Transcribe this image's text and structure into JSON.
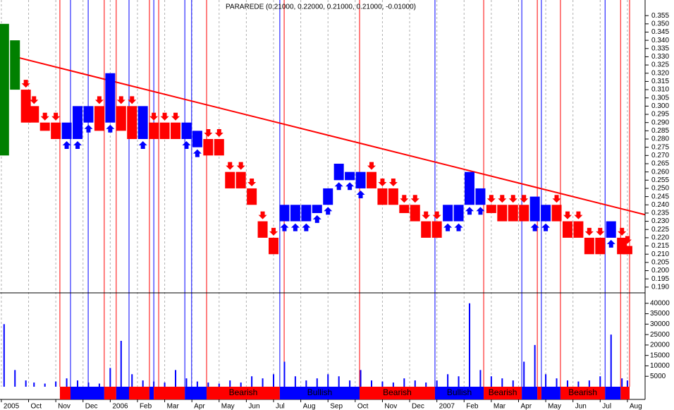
{
  "chart_data": {
    "type": "price-volume",
    "title": "PARAREDE (0.21000, 0.22000, 0.21000, 0.21000, -0.01000)",
    "xlim": [
      -0.05,
      23.65
    ],
    "xticks": [
      {
        "value": 0,
        "label": "2005"
      },
      {
        "value": 1,
        "label": "Oct"
      },
      {
        "value": 2,
        "label": "Nov"
      },
      {
        "value": 3,
        "label": "Dec"
      },
      {
        "value": 4,
        "label": "2006"
      },
      {
        "value": 5,
        "label": "Feb"
      },
      {
        "value": 6,
        "label": "Mar"
      },
      {
        "value": 7,
        "label": "Apr"
      },
      {
        "value": 8,
        "label": "May"
      },
      {
        "value": 9,
        "label": "Jun"
      },
      {
        "value": 10,
        "label": "Jul"
      },
      {
        "value": 11,
        "label": "Aug"
      },
      {
        "value": 12,
        "label": "Sep"
      },
      {
        "value": 13,
        "label": "Oct"
      },
      {
        "value": 14,
        "label": "Nov"
      },
      {
        "value": 15,
        "label": "Dec"
      },
      {
        "value": 16,
        "label": "2007"
      },
      {
        "value": 17,
        "label": "Feb"
      },
      {
        "value": 18,
        "label": "Mar"
      },
      {
        "value": 19,
        "label": "Apr"
      },
      {
        "value": 20,
        "label": "May"
      },
      {
        "value": 21,
        "label": "Jun"
      },
      {
        "value": 22,
        "label": "Jul"
      },
      {
        "value": 23,
        "label": "Aug"
      }
    ],
    "ylim": [
      0.1865,
      0.3645
    ],
    "yticks": [
      {
        "value": 0.19,
        "label": "0.190"
      },
      {
        "value": 0.195,
        "label": "0.195"
      },
      {
        "value": 0.2,
        "label": "0.200"
      },
      {
        "value": 0.205,
        "label": "0.205"
      },
      {
        "value": 0.21,
        "label": "0.210"
      },
      {
        "value": 0.215,
        "label": "0.215"
      },
      {
        "value": 0.22,
        "label": "0.220"
      },
      {
        "value": 0.225,
        "label": "0.225"
      },
      {
        "value": 0.23,
        "label": "0.230"
      },
      {
        "value": 0.235,
        "label": "0.235"
      },
      {
        "value": 0.24,
        "label": "0.240"
      },
      {
        "value": 0.245,
        "label": "0.245"
      },
      {
        "value": 0.25,
        "label": "0.250"
      },
      {
        "value": 0.255,
        "label": "0.255"
      },
      {
        "value": 0.26,
        "label": "0.260"
      },
      {
        "value": 0.265,
        "label": "0.265"
      },
      {
        "value": 0.27,
        "label": "0.270"
      },
      {
        "value": 0.275,
        "label": "0.275"
      },
      {
        "value": 0.28,
        "label": "0.280"
      },
      {
        "value": 0.285,
        "label": "0.285"
      },
      {
        "value": 0.29,
        "label": "0.290"
      },
      {
        "value": 0.295,
        "label": "0.295"
      },
      {
        "value": 0.3,
        "label": "0.300"
      },
      {
        "value": 0.305,
        "label": "0.305"
      },
      {
        "value": 0.31,
        "label": "0.310"
      },
      {
        "value": 0.315,
        "label": "0.315"
      },
      {
        "value": 0.32,
        "label": "0.320"
      },
      {
        "value": 0.325,
        "label": "0.325"
      },
      {
        "value": 0.33,
        "label": "0.330"
      },
      {
        "value": 0.335,
        "label": "0.335"
      },
      {
        "value": 0.34,
        "label": "0.340"
      },
      {
        "value": 0.345,
        "label": "0.345"
      },
      {
        "value": 0.35,
        "label": "0.350"
      },
      {
        "value": 0.355,
        "label": "0.355"
      }
    ],
    "x": [
      0.1,
      0.5,
      0.9,
      1.2,
      1.6,
      2.0,
      2.4,
      2.8,
      3.2,
      3.6,
      4.0,
      4.4,
      4.8,
      5.2,
      5.6,
      6.0,
      6.4,
      6.8,
      7.2,
      7.6,
      8.0,
      8.4,
      8.8,
      9.2,
      9.6,
      10.0,
      10.4,
      10.8,
      11.2,
      11.6,
      12.0,
      12.4,
      12.8,
      13.2,
      13.6,
      14.0,
      14.4,
      14.8,
      15.2,
      15.6,
      16.0,
      16.4,
      16.8,
      17.2,
      17.6,
      18.0,
      18.4,
      18.8,
      19.2,
      19.6,
      20.0,
      20.4,
      20.8,
      21.2,
      21.6,
      22.0,
      22.4,
      22.8,
      23.0
    ],
    "high": [
      0.35,
      0.34,
      0.31,
      0.3,
      0.29,
      0.29,
      0.29,
      0.3,
      0.3,
      0.3,
      0.32,
      0.3,
      0.3,
      0.3,
      0.29,
      0.29,
      0.29,
      0.29,
      0.285,
      0.28,
      0.28,
      0.26,
      0.26,
      0.25,
      0.23,
      0.22,
      0.24,
      0.24,
      0.24,
      0.24,
      0.25,
      0.265,
      0.26,
      0.26,
      0.26,
      0.25,
      0.25,
      0.24,
      0.24,
      0.23,
      0.23,
      0.24,
      0.24,
      0.26,
      0.25,
      0.24,
      0.24,
      0.24,
      0.24,
      0.245,
      0.24,
      0.24,
      0.23,
      0.23,
      0.22,
      0.22,
      0.23,
      0.22,
      0.215
    ],
    "low": [
      0.27,
      0.31,
      0.29,
      0.29,
      0.285,
      0.28,
      0.28,
      0.28,
      0.29,
      0.285,
      0.29,
      0.285,
      0.28,
      0.28,
      0.28,
      0.28,
      0.28,
      0.28,
      0.275,
      0.27,
      0.27,
      0.25,
      0.25,
      0.24,
      0.22,
      0.21,
      0.23,
      0.23,
      0.23,
      0.235,
      0.24,
      0.255,
      0.255,
      0.25,
      0.25,
      0.24,
      0.24,
      0.235,
      0.23,
      0.22,
      0.22,
      0.23,
      0.23,
      0.24,
      0.24,
      0.235,
      0.23,
      0.23,
      0.23,
      0.23,
      0.23,
      0.23,
      0.22,
      0.22,
      0.21,
      0.21,
      0.22,
      0.21,
      0.21
    ],
    "colors": [
      "#008000",
      "#008000",
      "#ff0000",
      "#ff0000",
      "#ff0000",
      "#ff0000",
      "#0000ff",
      "#0000ff",
      "#0000ff",
      "#ff0000",
      "#0000ff",
      "#ff0000",
      "#ff0000",
      "#0000ff",
      "#ff0000",
      "#ff0000",
      "#ff0000",
      "#0000ff",
      "#0000ff",
      "#ff0000",
      "#ff0000",
      "#ff0000",
      "#ff0000",
      "#ff0000",
      "#ff0000",
      "#ff0000",
      "#0000ff",
      "#0000ff",
      "#0000ff",
      "#0000ff",
      "#0000ff",
      "#0000ff",
      "#0000ff",
      "#0000ff",
      "#ff0000",
      "#ff0000",
      "#ff0000",
      "#ff0000",
      "#ff0000",
      "#ff0000",
      "#ff0000",
      "#0000ff",
      "#0000ff",
      "#0000ff",
      "#0000ff",
      "#ff0000",
      "#ff0000",
      "#ff0000",
      "#ff0000",
      "#0000ff",
      "#0000ff",
      "#ff0000",
      "#ff0000",
      "#ff0000",
      "#ff0000",
      "#ff0000",
      "#0000ff",
      "#ff0000",
      "#ff0000"
    ],
    "volume": [
      30000,
      8000,
      3000,
      2000,
      1500,
      2500,
      4000,
      3000,
      2000,
      1500,
      9000,
      22000,
      6000,
      3000,
      2500,
      2000,
      8000,
      4000,
      2500,
      2000,
      1500,
      3000,
      2000,
      5000,
      4000,
      6000,
      12000,
      5000,
      3000,
      4000,
      6000,
      5000,
      3000,
      8000,
      3000,
      2500,
      2000,
      4000,
      3000,
      2000,
      3000,
      6000,
      5000,
      40000,
      8000,
      5000,
      4000,
      3000,
      12000,
      20000,
      6000,
      4000,
      3000,
      2500,
      3000,
      5000,
      25000,
      4000,
      3000
    ],
    "volume_color": "#0000ff",
    "vlim": [
      0,
      45000
    ],
    "vticks": [
      5000,
      10000,
      15000,
      20000,
      25000,
      30000,
      35000,
      40000
    ],
    "trend_line": {
      "x": [
        0.5,
        23.65
      ],
      "y": [
        0.33,
        0.234
      ],
      "color": "#ff0000"
    },
    "signals": [
      {
        "x": 2.15,
        "color": "#ff0000"
      },
      {
        "x": 2.54,
        "color": "#0000ff"
      },
      {
        "x": 3.19,
        "color": "#0000ff"
      },
      {
        "x": 3.78,
        "color": "#ff0000"
      },
      {
        "x": 4.22,
        "color": "#ff0000"
      },
      {
        "x": 4.69,
        "color": "#0000ff"
      },
      {
        "x": 5.44,
        "color": "#ff0000"
      },
      {
        "x": 5.6,
        "color": "#0000ff"
      },
      {
        "x": 5.78,
        "color": "#ff0000"
      },
      {
        "x": 6.74,
        "color": "#0000ff"
      },
      {
        "x": 6.99,
        "color": "#0000ff"
      },
      {
        "x": 7.54,
        "color": "#ff0000"
      },
      {
        "x": 10.23,
        "color": "#0000ff"
      },
      {
        "x": 10.39,
        "color": "#ff0000"
      },
      {
        "x": 13.16,
        "color": "#ff0000"
      },
      {
        "x": 15.93,
        "color": "#0000ff"
      },
      {
        "x": 17.72,
        "color": "#ff0000"
      },
      {
        "x": 19.12,
        "color": "#0000ff"
      },
      {
        "x": 19.69,
        "color": "#ff0000"
      },
      {
        "x": 19.84,
        "color": "#0000ff"
      },
      {
        "x": 20.54,
        "color": "#ff0000"
      },
      {
        "x": 22.18,
        "color": "#0000ff"
      },
      {
        "x": 22.75,
        "color": "#ff0000"
      },
      {
        "x": 23.08,
        "color": "#ff0000"
      }
    ],
    "band": [
      {
        "start": 2.15,
        "end": 2.54,
        "color": "#ff0000"
      },
      {
        "start": 2.54,
        "end": 3.78,
        "color": "#0000ff"
      },
      {
        "start": 3.78,
        "end": 4.22,
        "color": "#ff0000"
      },
      {
        "start": 4.22,
        "end": 4.69,
        "color": "#0000ff"
      },
      {
        "start": 4.69,
        "end": 5.44,
        "color": "#ff0000"
      },
      {
        "start": 5.44,
        "end": 5.6,
        "color": "#0000ff"
      },
      {
        "start": 5.6,
        "end": 6.74,
        "color": "#ff0000"
      },
      {
        "start": 6.74,
        "end": 7.54,
        "color": "#0000ff"
      },
      {
        "start": 7.54,
        "end": 10.23,
        "color": "#ff0000",
        "label": "Bearish"
      },
      {
        "start": 10.23,
        "end": 13.16,
        "color": "#0000ff",
        "label": "Bullish"
      },
      {
        "start": 13.16,
        "end": 15.93,
        "color": "#ff0000",
        "label": "Bearish"
      },
      {
        "start": 15.93,
        "end": 17.72,
        "color": "#0000ff",
        "label": "Bullish"
      },
      {
        "start": 17.72,
        "end": 19.12,
        "color": "#ff0000",
        "label": "Bearish"
      },
      {
        "start": 19.12,
        "end": 19.69,
        "color": "#0000ff"
      },
      {
        "start": 19.69,
        "end": 19.84,
        "color": "#ff0000"
      },
      {
        "start": 19.84,
        "end": 20.54,
        "color": "#0000ff"
      },
      {
        "start": 20.54,
        "end": 22.18,
        "color": "#ff0000",
        "label": "Bearish"
      },
      {
        "start": 22.18,
        "end": 22.75,
        "color": "#0000ff"
      },
      {
        "start": 22.75,
        "end": 23.08,
        "color": "#ff0000"
      }
    ]
  }
}
